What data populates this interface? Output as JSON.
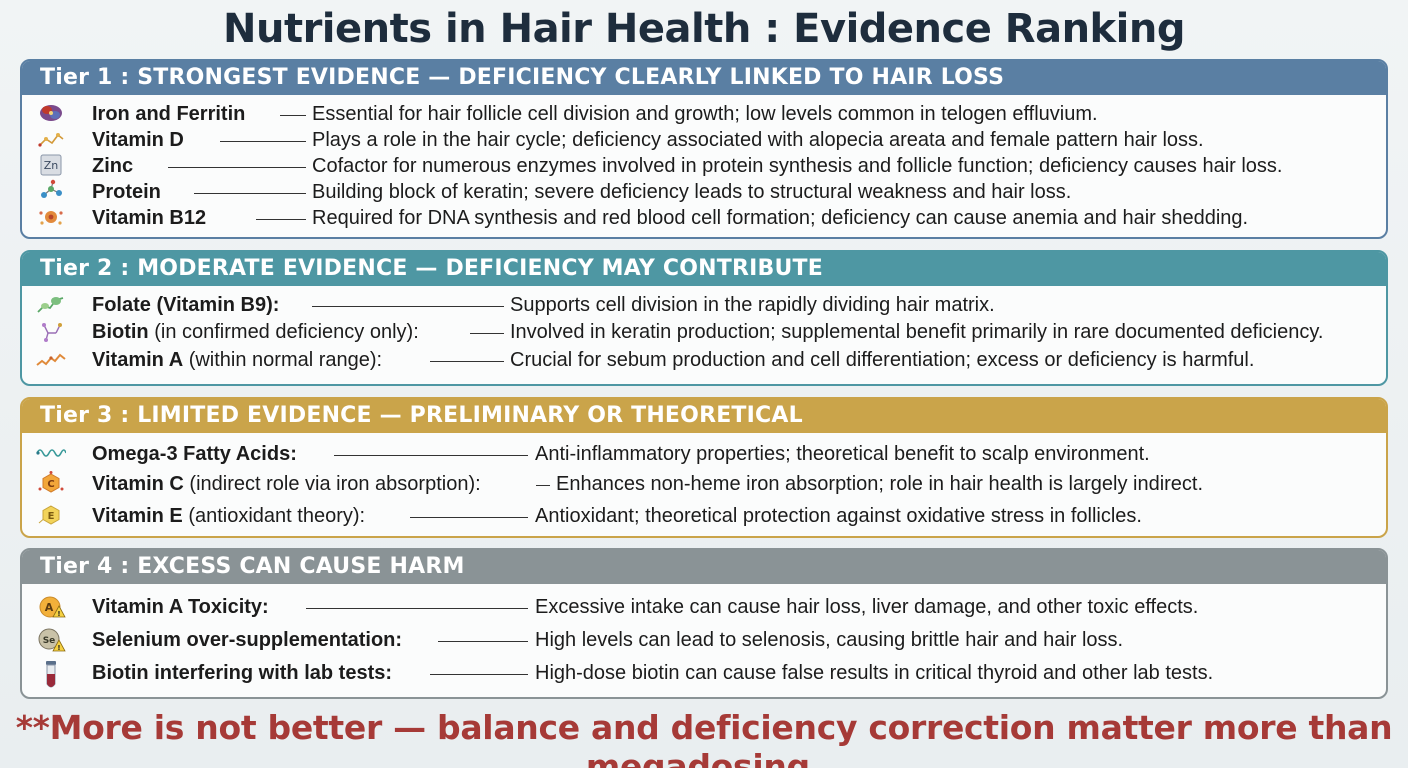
{
  "title": "Nutrients in Hair Health : Evidence Ranking",
  "tiers": [
    {
      "header": "Tier 1 : STRONGEST EVIDENCE — DEFICIENCY CLEARLY LINKED TO HAIR LOSS",
      "color": "#5a7fa3",
      "items": [
        {
          "icon": "iron-molecule-icon",
          "name_bold": "Iron and Ferritin",
          "name_rest": "",
          "desc": "Essential for hair follicle cell division and growth; low levels common in telogen effluvium."
        },
        {
          "icon": "vitamin-d-molecule-icon",
          "name_bold": "Vitamin D",
          "name_rest": "",
          "desc": "Plays a role in the hair cycle; deficiency associated with alopecia areata and female pattern hair loss."
        },
        {
          "icon": "zinc-element-icon",
          "icon_text": "Zn",
          "name_bold": "Zinc",
          "name_rest": "",
          "desc": "Cofactor for numerous enzymes involved in protein synthesis and follicle function; deficiency causes hair loss."
        },
        {
          "icon": "protein-molecule-icon",
          "name_bold": "Protein",
          "name_rest": "",
          "desc": "Building block of keratin; severe deficiency leads to structural weakness and hair loss."
        },
        {
          "icon": "b12-molecule-icon",
          "name_bold": "Vitamin B12",
          "name_rest": "",
          "desc": "Required for DNA synthesis and red blood cell formation; deficiency can cause anemia and hair shedding."
        }
      ]
    },
    {
      "header": "Tier 2 : MODERATE EVIDENCE — DEFICIENCY MAY CONTRIBUTE",
      "color": "#4e97a3",
      "items": [
        {
          "icon": "folate-molecule-icon",
          "name_bold": "Folate (Vitamin B9):",
          "name_rest": "",
          "desc": "Supports cell division in the rapidly dividing hair matrix."
        },
        {
          "icon": "biotin-molecule-icon",
          "name_bold": "Biotin",
          "name_rest": " (in confirmed deficiency only):",
          "desc": "Involved in keratin production; supplemental benefit primarily in rare documented deficiency."
        },
        {
          "icon": "vitamin-a-chain-icon",
          "name_bold": "Vitamin A",
          "name_rest": " (within normal range):",
          "desc": "Crucial for sebum production and cell differentiation; excess or deficiency is harmful."
        }
      ]
    },
    {
      "header": "Tier 3 : LIMITED EVIDENCE — PRELIMINARY OR THEORETICAL",
      "color": "#caa44a",
      "items": [
        {
          "icon": "omega-3-chain-icon",
          "name_bold": "Omega-3 Fatty Acids:",
          "name_rest": "",
          "desc": "Anti-inflammatory properties; theoretical benefit to scalp environment."
        },
        {
          "icon": "vitamin-c-molecule-icon",
          "icon_text": "C",
          "name_bold": "Vitamin C",
          "name_rest": " (indirect role via iron absorption):",
          "desc": "Enhances non-heme iron absorption; role in hair health is largely indirect."
        },
        {
          "icon": "vitamin-e-molecule-icon",
          "icon_text": "E",
          "name_bold": "Vitamin E",
          "name_rest": " (antioxidant theory):",
          "desc": "Antioxidant; theoretical protection against oxidative stress in follicles."
        }
      ]
    },
    {
      "header": "Tier 4 : EXCESS CAN CAUSE HARM",
      "color": "#8a9396",
      "items": [
        {
          "icon": "vitamin-a-warning-icon",
          "icon_text": "A",
          "name_bold": "Vitamin A Toxicity:",
          "name_rest": "",
          "desc": "Excessive intake can cause hair loss, liver damage, and other toxic effects."
        },
        {
          "icon": "selenium-warning-icon",
          "icon_text": "Se",
          "name_bold": "Selenium over-supplementation:",
          "name_rest": "",
          "desc": "High levels can lead to selenosis, causing brittle hair and hair loss."
        },
        {
          "icon": "test-tube-icon",
          "name_bold": "Biotin interfering with lab tests:",
          "name_rest": "",
          "desc": "High-dose biotin can cause false results in critical thyroid and other lab tests."
        }
      ]
    }
  ],
  "footer": "**More is not better — balance and deficiency correction matter more than megadosing."
}
